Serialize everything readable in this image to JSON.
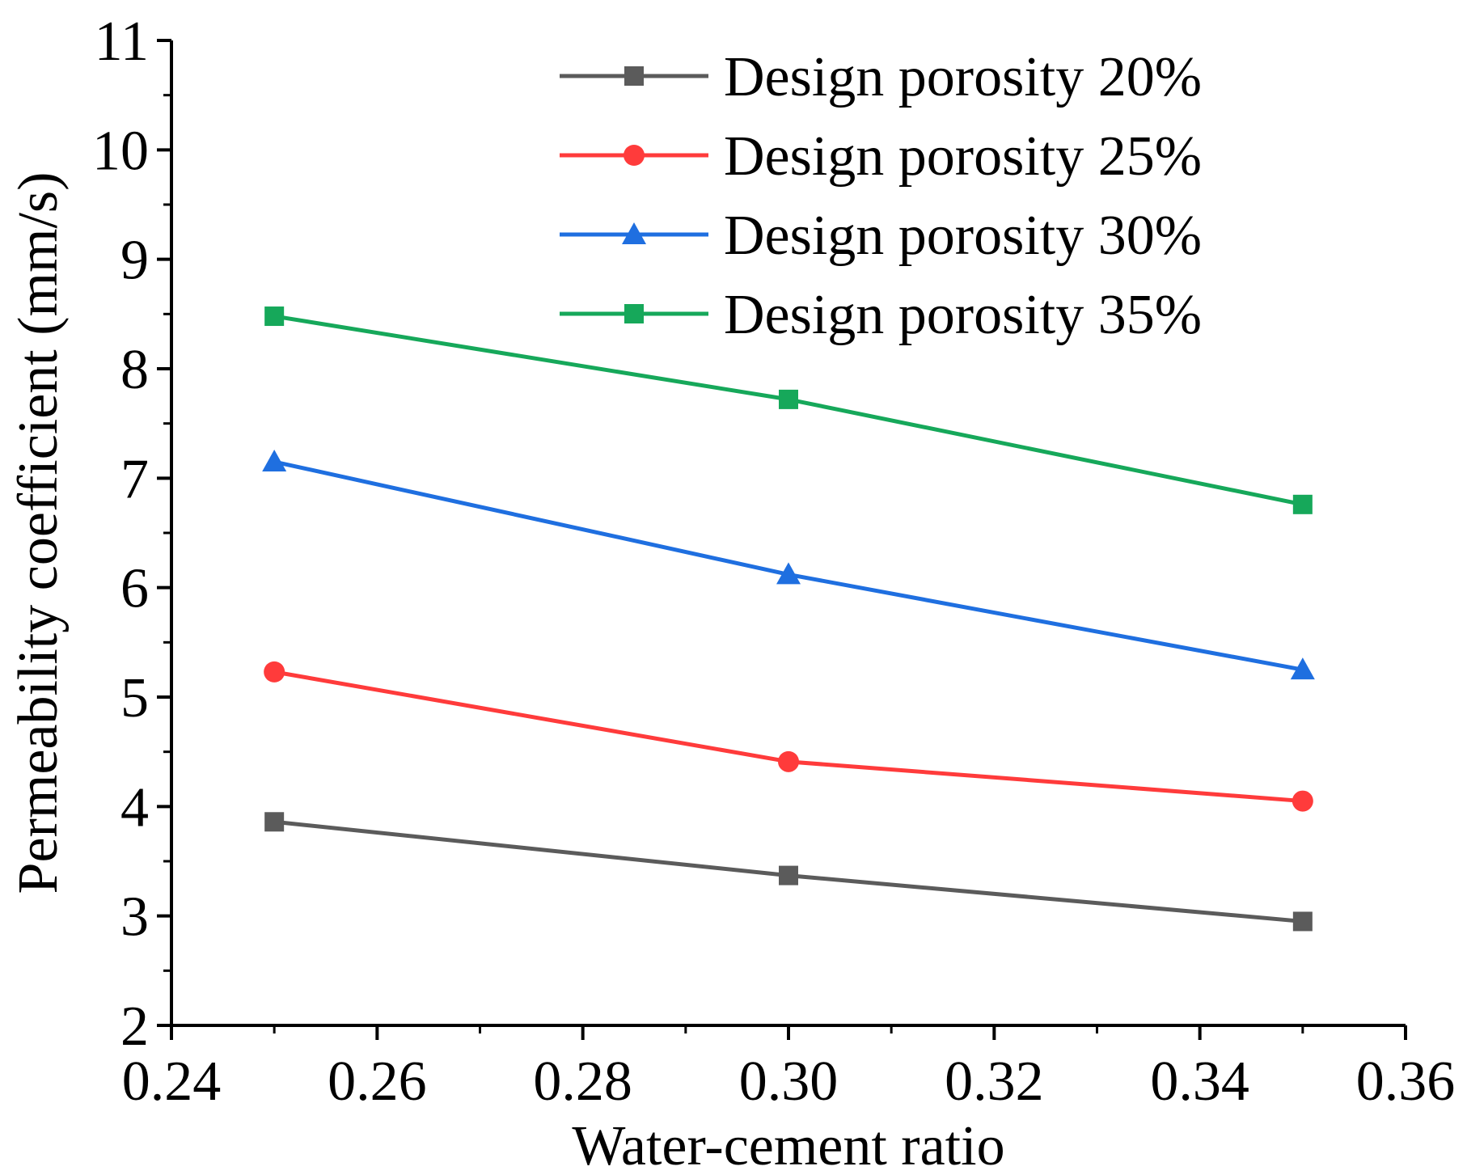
{
  "chart_data": {
    "type": "line",
    "title": "",
    "xlabel": "Water-cement ratio",
    "ylabel": "Permeability coefficient (mm/s)",
    "xlim": [
      0.24,
      0.36
    ],
    "ylim": [
      2,
      11
    ],
    "x_ticks": [
      "0.24",
      "0.26",
      "0.28",
      "0.30",
      "0.32",
      "0.34",
      "0.36"
    ],
    "y_ticks": [
      "2",
      "3",
      "4",
      "5",
      "6",
      "7",
      "8",
      "9",
      "10",
      "11"
    ],
    "x": [
      0.25,
      0.3,
      0.35
    ],
    "grid": false,
    "legend_position": "top-right",
    "series": [
      {
        "name": "Design porosity 20%",
        "color": "#5b5b5b",
        "marker": "square",
        "values": [
          3.86,
          3.37,
          2.95
        ]
      },
      {
        "name": "Design porosity 25%",
        "color": "#ff3b3b",
        "marker": "circle",
        "values": [
          5.23,
          4.41,
          4.05
        ]
      },
      {
        "name": "Design porosity 30%",
        "color": "#1f6fe0",
        "marker": "triangle",
        "values": [
          7.15,
          6.12,
          5.25
        ]
      },
      {
        "name": "Design porosity 35%",
        "color": "#16a85a",
        "marker": "square",
        "values": [
          8.48,
          7.72,
          6.76
        ]
      }
    ]
  }
}
